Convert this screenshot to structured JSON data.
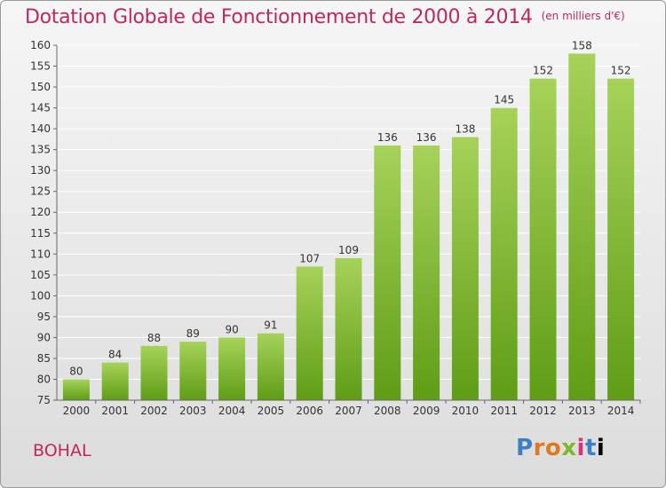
{
  "title": "Dotation Globale de Fonctionnement de 2000 à 2014",
  "unit_note": "(en milliers d'€)",
  "commune": "BOHAL",
  "brand": {
    "letters": [
      "P",
      "r",
      "o",
      "x",
      "i",
      "t",
      "i"
    ]
  },
  "colors": {
    "title": "#c0285a",
    "bar_top": "#a6d25a",
    "bar_bottom": "#5f9d15",
    "grid": "#ffffff"
  },
  "chart_data": {
    "type": "bar",
    "categories": [
      "2000",
      "2001",
      "2002",
      "2003",
      "2004",
      "2005",
      "2006",
      "2007",
      "2008",
      "2009",
      "2010",
      "2011",
      "2012",
      "2013",
      "2014"
    ],
    "values": [
      80,
      84,
      88,
      89,
      90,
      91,
      107,
      109,
      136,
      136,
      138,
      145,
      152,
      158,
      152
    ],
    "title": "Dotation Globale de Fonctionnement de 2000 à 2014",
    "ylim": [
      75,
      160
    ],
    "yticks": [
      75,
      80,
      85,
      90,
      95,
      100,
      105,
      110,
      115,
      120,
      125,
      130,
      135,
      140,
      145,
      150,
      155,
      160
    ],
    "grid": true,
    "legend": "none"
  }
}
